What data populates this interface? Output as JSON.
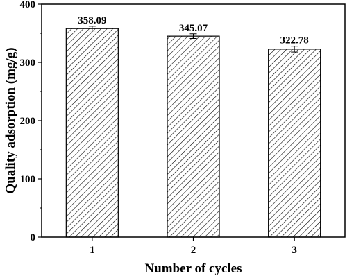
{
  "chart_data": {
    "type": "bar",
    "categories": [
      "1",
      "2",
      "3"
    ],
    "values": [
      358.09,
      345.07,
      322.78
    ],
    "data_labels": [
      "358.09",
      "345.07",
      "322.78"
    ],
    "error": [
      4,
      4,
      5
    ],
    "xlabel": "Number of cycles",
    "ylabel": "Quality adsorption (mg/g)",
    "ylim": [
      0,
      400
    ],
    "yticks": [
      0,
      100,
      200,
      300,
      400
    ],
    "ytick_labels": [
      "0",
      "100",
      "200",
      "300",
      "400"
    ],
    "grid": false,
    "bar_fill": "hatched",
    "bar_color": "#ffffff",
    "edge_color": "#000000"
  }
}
